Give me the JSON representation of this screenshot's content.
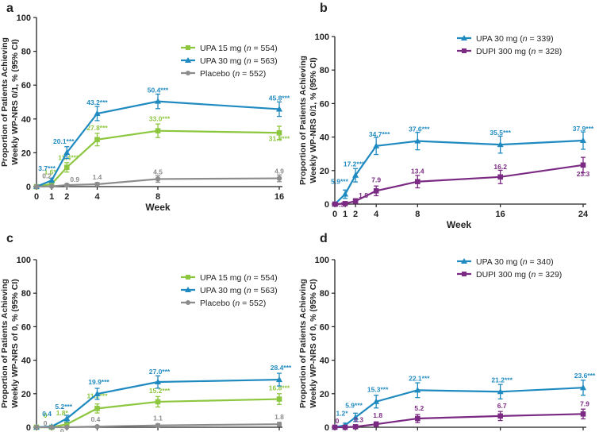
{
  "chart_data": [
    {
      "panel": "a",
      "type": "line",
      "x": [
        0,
        1,
        2,
        4,
        8,
        16
      ],
      "xticks": [
        "0",
        "1",
        "2",
        "4",
        "8",
        "16"
      ],
      "xlabel": "Week",
      "ylabel": [
        "Proportion of Patients Achieving",
        "Weekly WP-NRS 0/1, % (95% CI)"
      ],
      "ylim": [
        0,
        100
      ],
      "yticks": [
        "0",
        "20",
        "40",
        "60",
        "80",
        "100"
      ],
      "legend_position": "top-right",
      "series": [
        {
          "name": "UPA 15 mg (",
          "n_text": " = 554)",
          "color": "#8dc63f",
          "values": [
            0,
            1.6,
            11.4,
            27.8,
            33.0,
            31.8
          ],
          "err": [
            0,
            0.8,
            2.8,
            3.7,
            4.0,
            3.9
          ],
          "labels": [
            "",
            "1.6*",
            "11.4***",
            "27.8***",
            "33.0***",
            "31.8***"
          ]
        },
        {
          "name": "UPA 30 mg (",
          "n_text": " = 563)",
          "color": "#1f8ac0",
          "values": [
            0,
            3.7,
            20.1,
            43.2,
            50.4,
            45.8
          ],
          "err": [
            0,
            1.2,
            3.5,
            4.2,
            4.3,
            4.3
          ],
          "labels": [
            "",
            "3.7***",
            "20.1***",
            "43.2***",
            "50.4***",
            "45.8***"
          ]
        },
        {
          "name": "Placebo (",
          "n_text": " = 552)",
          "color": "#8c8c8c",
          "values": [
            0,
            0.2,
            0.9,
            1.4,
            4.5,
            4.9
          ],
          "err": [
            0,
            0.3,
            0.8,
            1.0,
            1.9,
            2.0
          ],
          "labels": [
            "",
            "0.2",
            "0.9",
            "1.4",
            "4.5",
            "4.9"
          ]
        }
      ]
    },
    {
      "panel": "b",
      "type": "line",
      "x": [
        0,
        1,
        2,
        4,
        8,
        16,
        24
      ],
      "xticks": [
        "0",
        "1",
        "2",
        "4",
        "8",
        "16",
        "24"
      ],
      "xlabel": "Week",
      "ylabel": [
        "Proportion of Patients Achieving",
        "Weekly WP-NRS 0/1, % (95% CI)"
      ],
      "ylim": [
        0,
        100
      ],
      "yticks": [
        "0",
        "20",
        "40",
        "60",
        "80",
        "100"
      ],
      "legend_position": "top-right",
      "series": [
        {
          "name": "UPA 30 mg (",
          "n_text": " = 339)",
          "color": "#1f8ac0",
          "values": [
            0,
            5.9,
            17.2,
            34.7,
            37.6,
            35.5,
            37.9
          ],
          "err": [
            0,
            2.5,
            4.0,
            5.1,
            5.2,
            5.1,
            5.2
          ],
          "labels": [
            "",
            "5.9***",
            "17.2***",
            "34.7***",
            "37.6***",
            "35.5***",
            "37.9***"
          ]
        },
        {
          "name": "DUPI 300 mg (",
          "n_text": " = 328)",
          "color": "#7b2a83",
          "values": [
            0,
            0.3,
            1.8,
            7.9,
            13.4,
            16.2,
            23.3
          ],
          "err": [
            0,
            0.5,
            1.4,
            2.9,
            3.7,
            4.0,
            4.6
          ],
          "labels": [
            "",
            "0.3",
            "1.8",
            "7.9",
            "13.4",
            "16.2",
            "23.3"
          ]
        }
      ]
    },
    {
      "panel": "c",
      "type": "line",
      "x": [
        0,
        1,
        2,
        4,
        8,
        16
      ],
      "xticks": [
        "0",
        "1",
        "2",
        "4",
        "8",
        "16"
      ],
      "xlabel": "Week",
      "ylabel": [
        "Proportion of Patients Achieving",
        "Weekly WP-NRS of 0, % (95% CI)"
      ],
      "ylim": [
        0,
        100
      ],
      "yticks": [
        "0",
        "20",
        "40",
        "60",
        "80",
        "100"
      ],
      "legend_position": "top-right",
      "series": [
        {
          "name": "UPA 15 mg (",
          "n_text": " = 554)",
          "color": "#8dc63f",
          "values": [
            0,
            0,
            1.8,
            11.2,
            15.2,
            16.8
          ],
          "err": [
            0,
            0,
            1.1,
            2.7,
            3.1,
            3.2
          ],
          "labels": [
            "",
            "0",
            "1.8*",
            "11.2***",
            "15.2***",
            "16.8***"
          ]
        },
        {
          "name": "UPA 30 mg (",
          "n_text": " = 563)",
          "color": "#1f8ac0",
          "values": [
            0,
            0.4,
            5.2,
            19.9,
            27.0,
            28.4
          ],
          "err": [
            0,
            0.5,
            1.9,
            3.3,
            3.7,
            3.8
          ],
          "labels": [
            "",
            "0.4",
            "5.2***",
            "19.9***",
            "27.0***",
            "28.4***"
          ]
        },
        {
          "name": "Placebo (",
          "n_text": " = 552)",
          "color": "#8c8c8c",
          "values": [
            0,
            0,
            0,
            0.4,
            1.1,
            1.8
          ],
          "err": [
            0,
            0,
            0,
            0.5,
            0.9,
            1.1
          ],
          "labels": [
            "",
            "0",
            "0",
            "0.4",
            "1.1",
            "1.8"
          ]
        }
      ]
    },
    {
      "panel": "d",
      "type": "line",
      "x": [
        0,
        1,
        2,
        4,
        8,
        16,
        24
      ],
      "xticks": [
        "0",
        "1",
        "2",
        "4",
        "8",
        "16",
        "24"
      ],
      "xlabel": "Week",
      "ylabel": [
        "Proportion of Patients Achieving",
        "Weekly WP-NRS of 0, % (95% CI)"
      ],
      "ylim": [
        0,
        100
      ],
      "yticks": [
        "0",
        "20",
        "40",
        "60",
        "80",
        "100"
      ],
      "legend_position": "top-right",
      "series": [
        {
          "name": "UPA 30 mg (",
          "n_text": " = 340)",
          "color": "#1f8ac0",
          "values": [
            0,
            1.2,
            5.9,
            15.3,
            22.1,
            21.2,
            23.6
          ],
          "err": [
            0,
            1.2,
            2.5,
            3.8,
            4.4,
            4.3,
            4.5
          ],
          "labels": [
            "",
            "1.2*",
            "5.9***",
            "15.3***",
            "22.1***",
            "21.2***",
            "23.6***"
          ]
        },
        {
          "name": "DUPI 300 mg (",
          "n_text": " = 329)",
          "color": "#7b2a83",
          "values": [
            0,
            0,
            0.3,
            1.8,
            5.2,
            6.7,
            7.9
          ],
          "err": [
            0,
            0,
            0.5,
            1.4,
            2.4,
            2.7,
            2.9
          ],
          "labels": [
            "",
            "0",
            "0.3",
            "1.8",
            "5.2",
            "6.7",
            "7.9"
          ]
        }
      ]
    }
  ]
}
